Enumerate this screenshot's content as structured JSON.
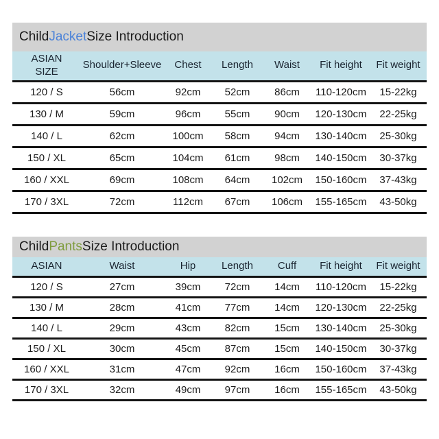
{
  "colors": {
    "title_bar_bg": "#d2d2d2",
    "header_row_bg": "#c3e2ea",
    "jacket_accent": "#4b82d8",
    "pants_accent": "#7f9c3e",
    "row_line": "#141414",
    "text": "#1c1c1c"
  },
  "jacket": {
    "title": {
      "prefix": "Child",
      "highlight": "Jacket",
      "suffix": "Size Introduction"
    },
    "headers": [
      "ASIAN\nSIZE",
      "Shoulder+Sleeve",
      "Chest",
      "Length",
      "Waist",
      "Fit height",
      "Fit weight"
    ],
    "rows": [
      [
        "120 / S",
        "56cm",
        "92cm",
        "52cm",
        "86cm",
        "110-120cm",
        "15-22kg"
      ],
      [
        "130 / M",
        "59cm",
        "96cm",
        "55cm",
        "90cm",
        "120-130cm",
        "22-25kg"
      ],
      [
        "140 / L",
        "62cm",
        "100cm",
        "58cm",
        "94cm",
        "130-140cm",
        "25-30kg"
      ],
      [
        "150 / XL",
        "65cm",
        "104cm",
        "61cm",
        "98cm",
        "140-150cm",
        "30-37kg"
      ],
      [
        "160 / XXL",
        "69cm",
        "108cm",
        "64cm",
        "102cm",
        "150-160cm",
        "37-43kg"
      ],
      [
        "170 / 3XL",
        "72cm",
        "112cm",
        "67cm",
        "106cm",
        "155-165cm",
        "43-50kg"
      ]
    ]
  },
  "pants": {
    "title": {
      "prefix": "Child",
      "highlight": "Pants",
      "suffix": "Size Introduction"
    },
    "headers": [
      "ASIAN",
      "Waist",
      "Hip",
      "Length",
      "Cuff",
      "Fit height",
      "Fit weight"
    ],
    "rows": [
      [
        "120 / S",
        "27cm",
        "39cm",
        "72cm",
        "14cm",
        "110-120cm",
        "15-22kg"
      ],
      [
        "130 / M",
        "28cm",
        "41cm",
        "77cm",
        "14cm",
        "120-130cm",
        "22-25kg"
      ],
      [
        "140 / L",
        "29cm",
        "43cm",
        "82cm",
        "15cm",
        "130-140cm",
        "25-30kg"
      ],
      [
        "150 / XL",
        "30cm",
        "45cm",
        "87cm",
        "15cm",
        "140-150cm",
        "30-37kg"
      ],
      [
        "160 / XXL",
        "31cm",
        "47cm",
        "92cm",
        "16cm",
        "150-160cm",
        "37-43kg"
      ],
      [
        "170 / 3XL",
        "32cm",
        "49cm",
        "97cm",
        "16cm",
        "155-165cm",
        "43-50kg"
      ]
    ]
  }
}
